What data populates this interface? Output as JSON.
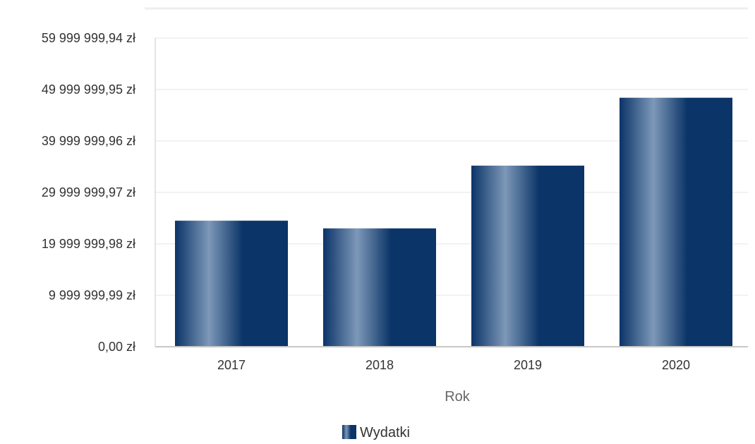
{
  "chart_data": {
    "type": "bar",
    "title": "",
    "xlabel": "Rok",
    "ylabel": "",
    "categories": [
      "2017",
      "2018",
      "2019",
      "2020"
    ],
    "series": [
      {
        "name": "Wydatki",
        "values": [
          24500000,
          23000000,
          35200000,
          48400000
        ]
      }
    ],
    "y_ticks": [
      {
        "value": 0,
        "label": "0,00 zł"
      },
      {
        "value": 9999999.99,
        "label": "9 999 999,99 zł"
      },
      {
        "value": 19999999.98,
        "label": "19 999 999,98 zł"
      },
      {
        "value": 29999999.97,
        "label": "29 999 999,97 zł"
      },
      {
        "value": 39999999.96,
        "label": "39 999 999,96 zł"
      },
      {
        "value": 49999999.95,
        "label": "49 999 999,95 zł"
      },
      {
        "value": 59999999.94,
        "label": "59 999 999,94 zł"
      }
    ],
    "ylim": [
      0,
      59999999.94
    ],
    "grid": true,
    "legend_position": "bottom-center",
    "colors": {
      "bar_dark": "#0b3468",
      "bar_light": "#7d98b8",
      "grid": "#e6e6e6",
      "axis": "#c8c8c8"
    }
  }
}
